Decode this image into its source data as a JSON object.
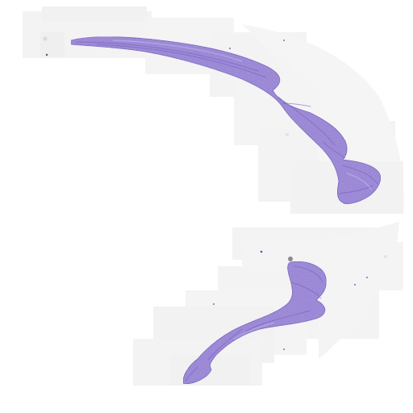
{
  "image": {
    "kind": "whole-slide histology thumbnail (H&E-like stain)",
    "background_color": "#ffffff",
    "glass_tile_color": "#f3f3f4",
    "tissue_colors": {
      "base": "#9a86d6",
      "dark": "#6f5cb8",
      "light": "#c0b3ea"
    },
    "tissue_fragments": [
      {
        "name": "upper-arc-strip"
      },
      {
        "name": "lower-curved-strip"
      }
    ]
  }
}
